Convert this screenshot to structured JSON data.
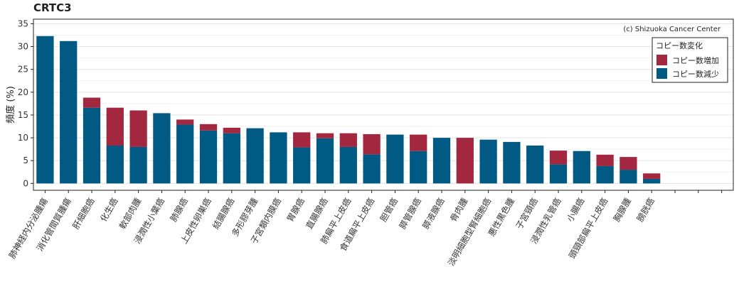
{
  "chart_data": {
    "type": "bar",
    "stacked": true,
    "title": "CRTC3",
    "ylabel": "頻度 (%)",
    "ylim": [
      -1.5,
      36
    ],
    "yticks": [
      0,
      5,
      10,
      15,
      20,
      25,
      30,
      35
    ],
    "grid": true,
    "credit": "(c) Shizuoka Cancer Center",
    "legend": {
      "title": "コピー数変化",
      "position": "top-right",
      "entries": [
        {
          "label": "コピー数増加",
          "color": "#a3273f"
        },
        {
          "label": "コピー数減少",
          "color": "#005a84"
        }
      ]
    },
    "categories": [
      "肺神経内分泌腫瘍",
      "消化管間質腫瘍",
      "肝細胞癌",
      "化生癌",
      "軟部肉腫",
      "浸潤性小葉癌",
      "肺腺癌",
      "上皮性卵巣癌",
      "結腸腺癌",
      "多形膠芽腫",
      "子宮類内膜癌",
      "胃腺癌",
      "直腸腺癌",
      "肺扁平上皮癌",
      "食道扁平上皮癌",
      "胆管癌",
      "膵管腺癌",
      "膵液腺癌",
      "骨肉腫",
      "淡明細胞型腎細胞癌",
      "悪性黒色腫",
      "子宮頸癌",
      "浸潤性乳管癌",
      "小腸癌",
      "頭頸部扁平上皮癌",
      "胸腺腫",
      "膀胱癌",
      "",
      "",
      ""
    ],
    "series": [
      {
        "name": "コピー数減少",
        "color": "#005a84",
        "values": [
          32.3,
          31.2,
          16.6,
          8.3,
          8.0,
          15.4,
          12.9,
          11.6,
          11.0,
          12.1,
          11.2,
          7.9,
          9.9,
          8.0,
          6.4,
          10.7,
          7.1,
          10.0,
          0,
          9.6,
          9.1,
          8.3,
          4.2,
          7.1,
          3.8,
          3.0,
          1.0,
          0,
          0,
          0
        ]
      },
      {
        "name": "コピー数増加",
        "color": "#a3273f",
        "values": [
          0,
          0,
          2.2,
          8.3,
          8.0,
          0,
          1.1,
          1.4,
          1.2,
          0,
          0,
          3.3,
          1.1,
          3.0,
          4.4,
          0,
          3.6,
          0,
          10.0,
          0,
          0,
          0,
          3.0,
          0,
          2.5,
          2.8,
          1.2,
          0,
          0,
          0
        ]
      }
    ]
  }
}
